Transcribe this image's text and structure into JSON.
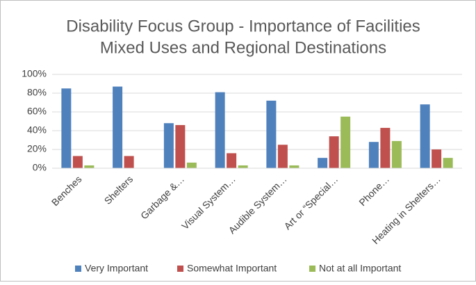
{
  "chart_data": {
    "type": "bar",
    "title": [
      "Disability Focus Group - Importance of Facilities",
      "Mixed Uses and Regional Destinations"
    ],
    "categories": [
      "Benches",
      "Shelters",
      "Garbage &…",
      "Visual System…",
      "Audible System…",
      "Art or “Special…",
      "Phone…",
      "Heating in Shelters…"
    ],
    "series": [
      {
        "name": "Very Important",
        "color": "#4f81bd",
        "values": [
          85,
          87,
          48,
          81,
          72,
          11,
          28,
          68
        ]
      },
      {
        "name": "Somewhat Important",
        "color": "#c0504d",
        "values": [
          13,
          13,
          46,
          16,
          25,
          34,
          43,
          20
        ]
      },
      {
        "name": "Not at all Important",
        "color": "#9bbb59",
        "values": [
          3,
          0,
          6,
          3,
          3,
          55,
          29,
          11
        ]
      }
    ],
    "ylim": [
      0,
      100
    ],
    "yticks": [
      {
        "value": 0,
        "label": "0%"
      },
      {
        "value": 20,
        "label": "20%"
      },
      {
        "value": 40,
        "label": "40%"
      },
      {
        "value": 60,
        "label": "60%"
      },
      {
        "value": 80,
        "label": "80%"
      },
      {
        "value": 100,
        "label": "100%"
      }
    ],
    "grid": true,
    "legend": "bottom"
  }
}
